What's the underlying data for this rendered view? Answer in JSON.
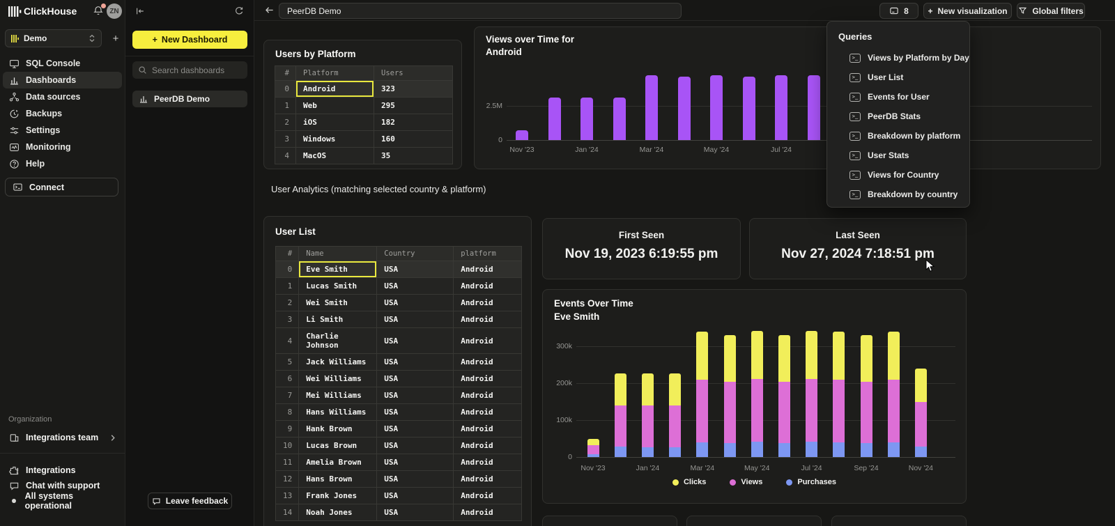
{
  "app": {
    "brand": "ClickHouse",
    "avatar": "ZN"
  },
  "sidebar": {
    "workspace": {
      "name": "Demo"
    },
    "nav": [
      {
        "label": "SQL Console"
      },
      {
        "label": "Dashboards",
        "selected": true
      },
      {
        "label": "Data sources"
      },
      {
        "label": "Backups"
      },
      {
        "label": "Settings"
      },
      {
        "label": "Monitoring"
      },
      {
        "label": "Help"
      }
    ],
    "connect_label": "Connect",
    "organization_label": "Organization",
    "org_team_label": "Integrations team",
    "footer": [
      {
        "label": "Integrations"
      },
      {
        "label": "Chat with support"
      },
      {
        "label": "All systems operational"
      }
    ]
  },
  "dashboards_panel": {
    "new_dashboard_label": "New Dashboard",
    "search_placeholder": "Search dashboards",
    "items": [
      {
        "label": "PeerDB Demo",
        "selected": true
      }
    ],
    "leave_feedback_label": "Leave feedback"
  },
  "topbar": {
    "title": "PeerDB Demo",
    "queries_count": "8",
    "new_visualization_label": "New visualization",
    "global_filters_label": "Global filters"
  },
  "queries_menu": {
    "title": "Queries",
    "items": [
      "Views by Platform by Day",
      "User List",
      "Events for User",
      "PeerDB Stats",
      "Breakdown by platform",
      "User Stats",
      "Views for Country",
      "Breakdown by country"
    ]
  },
  "users_by_platform": {
    "title": "Users by Platform",
    "columns": [
      "#",
      "Platform",
      "Users"
    ],
    "rows": [
      [
        "0",
        "Android",
        "323"
      ],
      [
        "1",
        "Web",
        "295"
      ],
      [
        "2",
        "iOS",
        "182"
      ],
      [
        "3",
        "Windows",
        "160"
      ],
      [
        "4",
        "MacOS",
        "35"
      ]
    ],
    "selected": {
      "row": 0,
      "col": 1
    }
  },
  "user_analytics_heading": "User Analytics (matching selected country & platform)",
  "user_list": {
    "title": "User List",
    "columns": [
      "#",
      "Name",
      "Country",
      "platform"
    ],
    "rows": [
      [
        "0",
        "Eve Smith",
        "USA",
        "Android"
      ],
      [
        "1",
        "Lucas Smith",
        "USA",
        "Android"
      ],
      [
        "2",
        "Wei Smith",
        "USA",
        "Android"
      ],
      [
        "3",
        "Li Smith",
        "USA",
        "Android"
      ],
      [
        "4",
        "Charlie Johnson",
        "USA",
        "Android"
      ],
      [
        "5",
        "Jack Williams",
        "USA",
        "Android"
      ],
      [
        "6",
        "Wei Williams",
        "USA",
        "Android"
      ],
      [
        "7",
        "Mei Williams",
        "USA",
        "Android"
      ],
      [
        "8",
        "Hans Williams",
        "USA",
        "Android"
      ],
      [
        "9",
        "Hank Brown",
        "USA",
        "Android"
      ],
      [
        "10",
        "Lucas Brown",
        "USA",
        "Android"
      ],
      [
        "11",
        "Amelia Brown",
        "USA",
        "Android"
      ],
      [
        "12",
        "Hans Brown",
        "USA",
        "Android"
      ],
      [
        "13",
        "Frank Jones",
        "USA",
        "Android"
      ],
      [
        "14",
        "Noah Jones",
        "USA",
        "Android"
      ]
    ],
    "selected": {
      "row": 0,
      "col": 1
    }
  },
  "stats": {
    "first_seen_label": "First Seen",
    "first_seen_value": "Nov 19, 2023 6:19:55 pm",
    "last_seen_label": "Last Seen",
    "last_seen_value": "Nov 27, 2024 7:18:51 pm"
  },
  "chart_data": [
    {
      "id": "views_over_time",
      "type": "bar",
      "title_line1": "Views over Time for",
      "title_line2": "Android",
      "categories": [
        "Nov '23",
        "Dec '23",
        "Jan '24",
        "Feb '24",
        "Mar '24",
        "Apr '24",
        "May '24",
        "Jun '24",
        "Jul '24",
        "Aug '24"
      ],
      "values": [
        0.72,
        3.1,
        3.1,
        3.1,
        4.75,
        4.65,
        4.75,
        4.65,
        4.75,
        4.75
      ],
      "unit": "M",
      "bar_color": "#a854f6",
      "y_ticks": [
        {
          "label": "2.5M",
          "value": 2.5
        },
        {
          "label": "0",
          "value": 0
        }
      ],
      "x_label_indices": [
        0,
        2,
        4,
        6,
        8
      ],
      "ylabel": "",
      "xlabel": "",
      "ylim": [
        0,
        5.2
      ],
      "grid": true
    },
    {
      "id": "events_over_time",
      "type": "stacked_bar",
      "title": "Events Over Time",
      "subtitle": "Eve Smith",
      "categories": [
        "Nov '23",
        "Dec '23",
        "Jan '24",
        "Feb '24",
        "Mar '24",
        "Apr '24",
        "May '24",
        "Jun '24",
        "Jul '24",
        "Aug '24",
        "Sep '24",
        "Oct '24",
        "Nov '24"
      ],
      "series": [
        {
          "name": "Purchases",
          "color": "#7d97f2",
          "values": [
            7,
            28,
            26,
            27,
            39,
            38,
            41,
            38,
            41,
            39,
            38,
            40,
            28
          ]
        },
        {
          "name": "Views",
          "color": "#dd6fd6",
          "values": [
            25,
            112,
            114,
            113,
            171,
            166,
            170,
            166,
            170,
            171,
            166,
            170,
            121
          ]
        },
        {
          "name": "Clicks",
          "color": "#f1ee5a",
          "values": [
            18,
            87,
            87,
            87,
            130,
            126,
            130,
            126,
            130,
            130,
            126,
            130,
            91
          ]
        }
      ],
      "unit": "k",
      "y_ticks": [
        {
          "label": "0",
          "value": 0
        },
        {
          "label": "100k",
          "value": 100
        },
        {
          "label": "200k",
          "value": 200
        },
        {
          "label": "300k",
          "value": 300
        }
      ],
      "x_label_indices": [
        0,
        2,
        4,
        6,
        8,
        10,
        12
      ],
      "legend_order": [
        "Clicks",
        "Views",
        "Purchases"
      ],
      "legend_position": "bottom-center",
      "ylim": [
        0,
        355
      ],
      "grid": true
    }
  ]
}
